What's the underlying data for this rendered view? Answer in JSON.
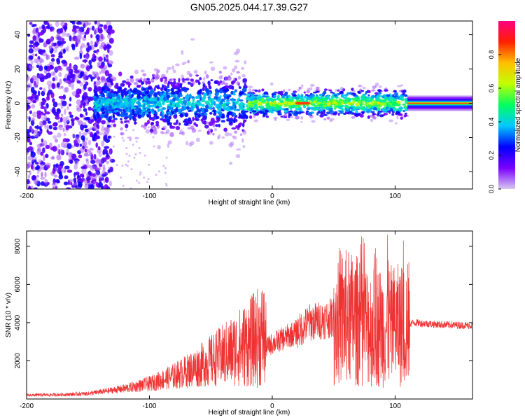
{
  "title": "GN05.2025.044.17.39.G27",
  "chart_data": [
    {
      "type": "heatmap",
      "xlabel": "Height of straight line (km)",
      "ylabel": "Frequency (Hz)",
      "xlim": [
        -200,
        163
      ],
      "ylim": [
        -50,
        48
      ],
      "xticks": [
        -200,
        -100,
        0,
        100
      ],
      "yticks": [
        -40,
        -20,
        0,
        20,
        40
      ],
      "colorbar": {
        "label": "Normalized spectral amplitude",
        "range": [
          0,
          1
        ],
        "ticks": [
          "0.0",
          "0.2",
          "0.4",
          "0.6",
          "0.8"
        ],
        "colormap": [
          "#d8c8f0",
          "#7a00ff",
          "#0000ff",
          "#00c8ff",
          "#00ff60",
          "#c0ff00",
          "#ffc000",
          "#ff2000",
          "#ff0080"
        ]
      },
      "regions": [
        {
          "x": [
            -200,
            -130
          ],
          "freq_spread": 48,
          "amplitude": 0.15
        },
        {
          "x": [
            -145,
            -20
          ],
          "freq_spread": 12,
          "amplitude": 0.35
        },
        {
          "x": [
            -20,
            110
          ],
          "freq_spread": 4,
          "amplitude": 0.6
        },
        {
          "x": [
            110,
            163
          ],
          "freq_spread": 2,
          "amplitude": 0.9
        }
      ]
    },
    {
      "type": "line",
      "xlabel": "Height of straight line (km)",
      "ylabel": "SNR (10 * v/v)",
      "xlim": [
        -200,
        163
      ],
      "ylim": [
        0,
        8800
      ],
      "xticks": [
        -200,
        -100,
        0,
        100
      ],
      "yticks": [
        2000,
        4000,
        6000,
        8000
      ],
      "series_color": "#ee3333",
      "envelope": [
        {
          "x": -200,
          "y": 200
        },
        {
          "x": -170,
          "y": 230
        },
        {
          "x": -150,
          "y": 280
        },
        {
          "x": -120,
          "y": 550
        },
        {
          "x": -100,
          "y": 800
        },
        {
          "x": -80,
          "y": 1200
        },
        {
          "x": -60,
          "y": 1700
        },
        {
          "x": -40,
          "y": 2300
        },
        {
          "x": -20,
          "y": 2900
        },
        {
          "x": -7,
          "y": 3400
        },
        {
          "x": -5,
          "y": 2700
        },
        {
          "x": 0,
          "y": 2900
        },
        {
          "x": 10,
          "y": 3200
        },
        {
          "x": 20,
          "y": 3500
        },
        {
          "x": 30,
          "y": 4000
        },
        {
          "x": 45,
          "y": 4200
        },
        {
          "x": 55,
          "y": 4350
        },
        {
          "x": 65,
          "y": 4200
        },
        {
          "x": 80,
          "y": 3800
        },
        {
          "x": 95,
          "y": 3800
        },
        {
          "x": 110,
          "y": 3900
        },
        {
          "x": 115,
          "y": 4000
        },
        {
          "x": 135,
          "y": 3900
        },
        {
          "x": 163,
          "y": 3850
        }
      ],
      "peak_max": 8600
    }
  ]
}
